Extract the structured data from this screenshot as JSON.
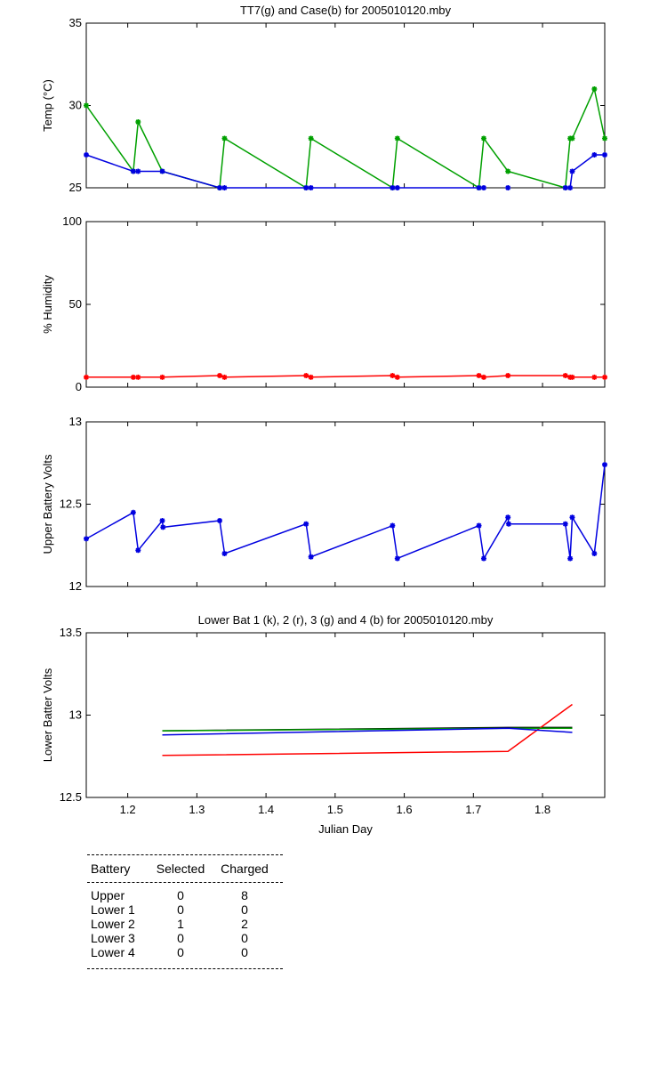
{
  "chart_data": [
    {
      "type": "line",
      "title": "TT7(g) and Case(b) for 2005010120.mby",
      "xlabel": "",
      "ylabel": "Temp (°C)",
      "xlim": [
        1.14,
        1.89
      ],
      "ylim": [
        25,
        35
      ],
      "yticks": [
        "25",
        "30",
        "35"
      ],
      "xticks": [],
      "grid": false,
      "series": [
        {
          "name": "TT7",
          "color": "#00a000",
          "marker": "*",
          "x": [
            1.14,
            1.208,
            1.215,
            1.25,
            1.333,
            1.34,
            1.458,
            1.465,
            1.583,
            1.59,
            1.708,
            1.715,
            1.75,
            1.833,
            1.84,
            1.843,
            1.875,
            1.89
          ],
          "y": [
            30,
            26,
            29,
            26,
            25,
            28,
            25,
            28,
            25,
            28,
            25,
            28,
            26,
            25,
            28,
            28,
            31,
            28
          ]
        },
        {
          "name": "Case",
          "color": "#0000e0",
          "marker": "*",
          "x": [
            1.14,
            1.208,
            1.215,
            1.25,
            1.333,
            1.34,
            1.458,
            1.465,
            1.583,
            1.59,
            1.708,
            1.715,
            1.75,
            1.833,
            1.84,
            1.843,
            1.875,
            1.89
          ],
          "y": [
            27,
            26,
            26,
            26,
            25,
            25,
            25,
            25,
            25,
            25,
            25,
            25,
            25,
            25,
            25,
            26,
            27,
            27
          ],
          "gaps_after_index": [
            11,
            12
          ]
        }
      ]
    },
    {
      "type": "line",
      "title": "",
      "xlabel": "",
      "ylabel": "% Humidity",
      "xlim": [
        1.14,
        1.89
      ],
      "ylim": [
        0,
        100
      ],
      "yticks": [
        "0",
        "50",
        "100"
      ],
      "xticks": [],
      "grid": false,
      "series": [
        {
          "name": "Humidity",
          "color": "#ff0000",
          "marker": "*",
          "x": [
            1.14,
            1.208,
            1.215,
            1.25,
            1.333,
            1.34,
            1.458,
            1.465,
            1.583,
            1.59,
            1.708,
            1.715,
            1.75,
            1.833,
            1.84,
            1.843,
            1.875,
            1.89
          ],
          "y": [
            6,
            6,
            6,
            6,
            7,
            6,
            7,
            6,
            7,
            6,
            7,
            6,
            7,
            7,
            6,
            6,
            6,
            6
          ]
        }
      ]
    },
    {
      "type": "line",
      "title": "",
      "xlabel": "",
      "ylabel": "Upper Battery Volts",
      "xlim": [
        1.14,
        1.89
      ],
      "ylim": [
        12,
        13
      ],
      "yticks": [
        "12",
        "12.5",
        "13"
      ],
      "xticks": [],
      "grid": false,
      "series": [
        {
          "name": "Upper",
          "color": "#0000e0",
          "marker": "*",
          "x": [
            1.14,
            1.208,
            1.215,
            1.25,
            1.251,
            1.333,
            1.34,
            1.458,
            1.465,
            1.583,
            1.59,
            1.708,
            1.715,
            1.75,
            1.751,
            1.833,
            1.84,
            1.843,
            1.875,
            1.89
          ],
          "y": [
            12.29,
            12.45,
            12.22,
            12.4,
            12.36,
            12.4,
            12.2,
            12.38,
            12.18,
            12.37,
            12.17,
            12.37,
            12.17,
            12.42,
            12.38,
            12.38,
            12.17,
            12.42,
            12.2,
            12.74
          ]
        }
      ]
    },
    {
      "type": "line",
      "title": "Lower Bat 1 (k), 2 (r), 3 (g) and 4 (b) for 2005010120.mby",
      "xlabel": "Julian Day",
      "ylabel": "Lower Batter Volts",
      "xlim": [
        1.14,
        1.89
      ],
      "ylim": [
        12.5,
        13.5
      ],
      "yticks": [
        "12.5",
        "13",
        "13.5"
      ],
      "xticks": [
        "1.2",
        "1.3",
        "1.4",
        "1.5",
        "1.6",
        "1.7",
        "1.8"
      ],
      "grid": false,
      "series": [
        {
          "name": "Lower 1",
          "color": "#000000",
          "x": [
            1.25,
            1.75,
            1.843
          ],
          "y": [
            12.905,
            12.925,
            12.925
          ]
        },
        {
          "name": "Lower 2",
          "color": "#ff0000",
          "x": [
            1.25,
            1.75,
            1.843
          ],
          "y": [
            12.755,
            12.78,
            13.065
          ]
        },
        {
          "name": "Lower 3",
          "color": "#00a000",
          "x": [
            1.25,
            1.75,
            1.843
          ],
          "y": [
            12.905,
            12.92,
            12.92
          ]
        },
        {
          "name": "Lower 4",
          "color": "#0000e0",
          "x": [
            1.25,
            1.75,
            1.843
          ],
          "y": [
            12.88,
            12.92,
            12.895
          ]
        }
      ]
    }
  ],
  "table": {
    "headers": [
      "Battery",
      "Selected",
      "Charged"
    ],
    "rows": [
      [
        "Upper",
        "0",
        "8"
      ],
      [
        "Lower 1",
        "0",
        "0"
      ],
      [
        "Lower 2",
        "1",
        "2"
      ],
      [
        "Lower 3",
        "0",
        "0"
      ],
      [
        "Lower 4",
        "0",
        "0"
      ]
    ]
  }
}
